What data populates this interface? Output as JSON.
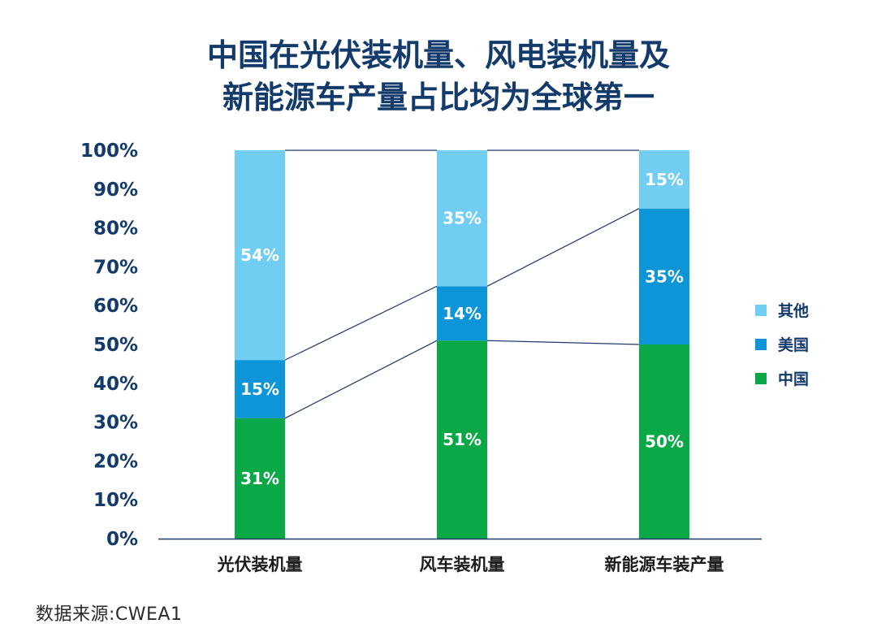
{
  "header": {
    "title_line1": "中国在光伏装机量、风电装机量及",
    "title_line2": "新能源车产量占比均为全球第一"
  },
  "footer": {
    "source": "数据来源:CWEA1"
  },
  "chart_data": {
    "type": "bar",
    "stacked": true,
    "title": "中国在光伏装机量、风电装机量及新能源车产量占比均为全球第一",
    "categories": [
      "光伏装机量",
      "风车装机量",
      "新能源车装产量"
    ],
    "series": [
      {
        "name": "中国",
        "color": "#0aa847",
        "values": [
          31,
          51,
          50
        ],
        "labels": [
          "31%",
          "51%",
          "50%"
        ]
      },
      {
        "name": "美国",
        "color": "#0e95d8",
        "values": [
          15,
          14,
          35
        ],
        "labels": [
          "15%",
          "14%",
          "35%"
        ]
      },
      {
        "name": "其他",
        "color": "#72cdf2",
        "values": [
          54,
          35,
          15
        ],
        "labels": [
          "54%",
          "35%",
          "15%"
        ]
      }
    ],
    "legend_order": [
      "其他",
      "美国",
      "中国"
    ],
    "legend_position": "right",
    "ylim": [
      0,
      100
    ],
    "yticks": [
      "0%",
      "10%",
      "20%",
      "30%",
      "40%",
      "50%",
      "60%",
      "70%",
      "80%",
      "90%",
      "100%"
    ],
    "xlabel": "",
    "ylabel": "",
    "connector_color": "#1b3a6b",
    "axis_color": "#1b3a6b"
  }
}
